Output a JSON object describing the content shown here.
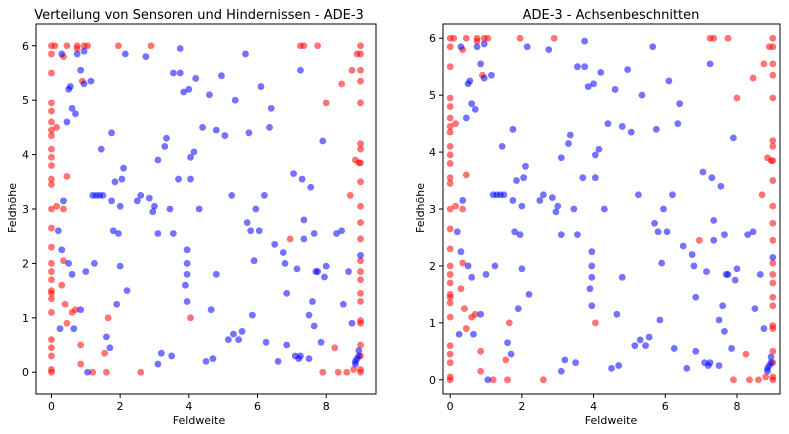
{
  "colors": {
    "sensor": "#0000ff",
    "obstacle": "#ff0000",
    "point_alpha": 0.55
  },
  "chart_data": [
    {
      "type": "scatter",
      "title": "Verteilung von Sensoren und Hindernissen - ADE-3",
      "xlabel": "Feldweite",
      "ylabel": "Feldhöhe",
      "xlim": [
        -0.45,
        9.45
      ],
      "ylim": [
        -0.4,
        6.4
      ],
      "xticks": [
        0,
        2,
        4,
        6,
        8
      ],
      "yticks": [
        0,
        1,
        2,
        3,
        4,
        5,
        6
      ],
      "series_ref": "points"
    },
    {
      "type": "scatter",
      "title": "ADE-3 - Achsenbeschnitten",
      "xlabel": "Feldweite",
      "ylabel": "Feldhöhe",
      "xlim": [
        -0.2,
        9.2
      ],
      "ylim": [
        -0.25,
        6.25
      ],
      "xticks": [
        0,
        2,
        4,
        6,
        8
      ],
      "yticks": [
        0,
        1,
        2,
        3,
        4,
        5,
        6
      ],
      "series_ref": "points"
    }
  ],
  "points": {
    "sensors": [
      [
        0.3,
        2.25
      ],
      [
        0.2,
        2.6
      ],
      [
        0.25,
        0.8
      ],
      [
        0.35,
        3.15
      ],
      [
        0.3,
        5.85
      ],
      [
        0.45,
        4.6
      ],
      [
        0.5,
        5.2
      ],
      [
        0.55,
        5.25
      ],
      [
        0.5,
        2.0
      ],
      [
        0.6,
        1.8
      ],
      [
        0.6,
        4.85
      ],
      [
        0.7,
        4.75
      ],
      [
        0.65,
        0.8
      ],
      [
        0.75,
        5.85
      ],
      [
        0.85,
        1.15
      ],
      [
        0.85,
        5.55
      ],
      [
        0.95,
        5.3
      ],
      [
        0.95,
        5.9
      ],
      [
        1.0,
        1.85
      ],
      [
        1.05,
        0.0
      ],
      [
        1.15,
        5.35
      ],
      [
        1.2,
        3.25
      ],
      [
        1.25,
        2.0
      ],
      [
        1.3,
        3.25
      ],
      [
        1.4,
        3.25
      ],
      [
        1.45,
        4.1
      ],
      [
        1.5,
        3.25
      ],
      [
        1.6,
        0.65
      ],
      [
        1.7,
        0.45
      ],
      [
        1.75,
        3.15
      ],
      [
        1.75,
        4.4
      ],
      [
        1.8,
        2.6
      ],
      [
        1.85,
        3.5
      ],
      [
        1.9,
        1.25
      ],
      [
        1.95,
        2.55
      ],
      [
        2.0,
        3.05
      ],
      [
        2.0,
        1.95
      ],
      [
        2.05,
        3.55
      ],
      [
        2.1,
        3.75
      ],
      [
        2.2,
        1.5
      ],
      [
        2.15,
        5.85
      ],
      [
        2.5,
        3.15
      ],
      [
        2.6,
        3.25
      ],
      [
        2.75,
        5.8
      ],
      [
        2.85,
        3.2
      ],
      [
        2.95,
        2.95
      ],
      [
        3.0,
        3.05
      ],
      [
        3.1,
        0.15
      ],
      [
        3.1,
        2.55
      ],
      [
        3.1,
        3.9
      ],
      [
        3.2,
        0.35
      ],
      [
        3.3,
        4.15
      ],
      [
        3.35,
        4.3
      ],
      [
        3.45,
        3.0
      ],
      [
        3.55,
        5.5
      ],
      [
        3.55,
        2.55
      ],
      [
        3.5,
        0.3
      ],
      [
        3.7,
        3.55
      ],
      [
        3.75,
        5.5
      ],
      [
        3.75,
        5.95
      ],
      [
        3.85,
        5.15
      ],
      [
        3.95,
        1.8
      ],
      [
        3.95,
        2.25
      ],
      [
        3.95,
        2.0
      ],
      [
        3.9,
        1.6
      ],
      [
        3.95,
        1.3
      ],
      [
        4.0,
        5.2
      ],
      [
        4.05,
        3.55
      ],
      [
        4.15,
        4.05
      ],
      [
        4.05,
        3.95
      ],
      [
        4.2,
        5.4
      ],
      [
        4.3,
        3.0
      ],
      [
        4.4,
        4.5
      ],
      [
        4.5,
        0.2
      ],
      [
        4.6,
        5.1
      ],
      [
        4.65,
        1.15
      ],
      [
        4.7,
        0.25
      ],
      [
        4.8,
        4.45
      ],
      [
        4.8,
        1.8
      ],
      [
        4.95,
        5.45
      ],
      [
        5.05,
        4.35
      ],
      [
        5.15,
        0.6
      ],
      [
        5.25,
        3.25
      ],
      [
        5.3,
        0.7
      ],
      [
        5.35,
        5.0
      ],
      [
        5.45,
        0.6
      ],
      [
        5.55,
        0.75
      ],
      [
        5.65,
        5.85
      ],
      [
        5.7,
        2.75
      ],
      [
        5.75,
        4.4
      ],
      [
        5.8,
        2.6
      ],
      [
        5.85,
        1.05
      ],
      [
        5.9,
        2.05
      ],
      [
        5.95,
        3.0
      ],
      [
        6.05,
        2.6
      ],
      [
        6.1,
        5.25
      ],
      [
        6.2,
        3.25
      ],
      [
        6.25,
        0.55
      ],
      [
        6.35,
        4.5
      ],
      [
        6.4,
        4.85
      ],
      [
        6.5,
        2.35
      ],
      [
        6.6,
        0.2
      ],
      [
        6.75,
        2.2
      ],
      [
        6.8,
        2.0
      ],
      [
        6.85,
        1.45
      ],
      [
        6.85,
        0.5
      ],
      [
        7.05,
        3.65
      ],
      [
        7.1,
        0.3
      ],
      [
        7.15,
        1.9
      ],
      [
        7.2,
        0.25
      ],
      [
        7.25,
        0.3
      ],
      [
        7.35,
        2.45
      ],
      [
        7.25,
        5.55
      ],
      [
        7.3,
        3.55
      ],
      [
        7.35,
        2.8
      ],
      [
        7.5,
        0.25
      ],
      [
        7.5,
        1.05
      ],
      [
        7.55,
        3.4
      ],
      [
        7.6,
        1.3
      ],
      [
        7.65,
        0.85
      ],
      [
        7.65,
        2.55
      ],
      [
        7.7,
        1.85
      ],
      [
        7.75,
        1.85
      ],
      [
        7.85,
        0.55
      ],
      [
        7.9,
        4.25
      ],
      [
        7.95,
        1.75
      ],
      [
        8.0,
        1.95
      ],
      [
        8.3,
        2.55
      ],
      [
        8.45,
        2.6
      ],
      [
        8.5,
        1.25
      ],
      [
        8.65,
        1.85
      ],
      [
        8.75,
        0.9
      ],
      [
        8.85,
        0.2
      ],
      [
        8.85,
        0.15
      ],
      [
        8.95,
        0.3
      ],
      [
        8.9,
        0.25
      ],
      [
        8.95,
        0.4
      ],
      [
        9.0,
        2.15
      ]
    ],
    "obstacles": [
      [
        0,
        0
      ],
      [
        0,
        0.05
      ],
      [
        0,
        0.3
      ],
      [
        0,
        0.45
      ],
      [
        0,
        0.6
      ],
      [
        0,
        1.1
      ],
      [
        0,
        1.35
      ],
      [
        0,
        1.45
      ],
      [
        0,
        1.5
      ],
      [
        0,
        1.7
      ],
      [
        0,
        1.85
      ],
      [
        0,
        2.0
      ],
      [
        0,
        2.3
      ],
      [
        0,
        2.65
      ],
      [
        0,
        3.0
      ],
      [
        0,
        3.45
      ],
      [
        0,
        3.55
      ],
      [
        0,
        3.8
      ],
      [
        0,
        3.95
      ],
      [
        0,
        4.1
      ],
      [
        0,
        4.35
      ],
      [
        0,
        4.45
      ],
      [
        0,
        4.6
      ],
      [
        0,
        4.8
      ],
      [
        0,
        4.95
      ],
      [
        0,
        5.5
      ],
      [
        0,
        5.85
      ],
      [
        0,
        6.0
      ],
      [
        0.1,
        6.0
      ],
      [
        0.15,
        4.5
      ],
      [
        0.15,
        3.05
      ],
      [
        0.3,
        1.6
      ],
      [
        0.35,
        2.05
      ],
      [
        0.35,
        3.0
      ],
      [
        0.35,
        5.8
      ],
      [
        0.4,
        1.25
      ],
      [
        0.45,
        0.9
      ],
      [
        0.45,
        3.6
      ],
      [
        0.45,
        6.0
      ],
      [
        0.6,
        1.1
      ],
      [
        0.7,
        1.15
      ],
      [
        0.75,
        5.95
      ],
      [
        0.75,
        6.0
      ],
      [
        0.85,
        0.15
      ],
      [
        0.85,
        0.5
      ],
      [
        0.9,
        5.35
      ],
      [
        0.95,
        6.0
      ],
      [
        1.05,
        6.0
      ],
      [
        1.2,
        0.0
      ],
      [
        1.55,
        0.35
      ],
      [
        1.6,
        0.0
      ],
      [
        1.65,
        1.0
      ],
      [
        1.95,
        6.0
      ],
      [
        2.6,
        0.0
      ],
      [
        2.9,
        6.0
      ],
      [
        4.05,
        1.0
      ],
      [
        6.95,
        2.45
      ],
      [
        7.25,
        6.0
      ],
      [
        7.35,
        6.0
      ],
      [
        7.75,
        6.0
      ],
      [
        7.9,
        0.0
      ],
      [
        8.0,
        4.95
      ],
      [
        8.25,
        0.45
      ],
      [
        8.35,
        0.0
      ],
      [
        8.45,
        5.3
      ],
      [
        8.6,
        0.0
      ],
      [
        8.7,
        3.25
      ],
      [
        8.75,
        5.55
      ],
      [
        8.8,
        0.05
      ],
      [
        8.85,
        3.9
      ],
      [
        8.95,
        3.85
      ],
      [
        8.9,
        5.85
      ],
      [
        9.0,
        0.0
      ],
      [
        9.0,
        0.05
      ],
      [
        9.0,
        0.3
      ],
      [
        9.0,
        0.5
      ],
      [
        9.0,
        0.9
      ],
      [
        9.0,
        0.95
      ],
      [
        9.0,
        1.3
      ],
      [
        9.0,
        1.45
      ],
      [
        9.0,
        1.7
      ],
      [
        9.0,
        1.85
      ],
      [
        9.0,
        2.05
      ],
      [
        9.0,
        2.45
      ],
      [
        9.0,
        2.75
      ],
      [
        9.0,
        3.05
      ],
      [
        9.0,
        3.5
      ],
      [
        9.0,
        3.85
      ],
      [
        9.0,
        4.1
      ],
      [
        9.0,
        4.2
      ],
      [
        9.0,
        4.95
      ],
      [
        9.0,
        5.35
      ],
      [
        9.0,
        5.55
      ],
      [
        9.0,
        5.85
      ],
      [
        9.0,
        6.0
      ]
    ]
  }
}
